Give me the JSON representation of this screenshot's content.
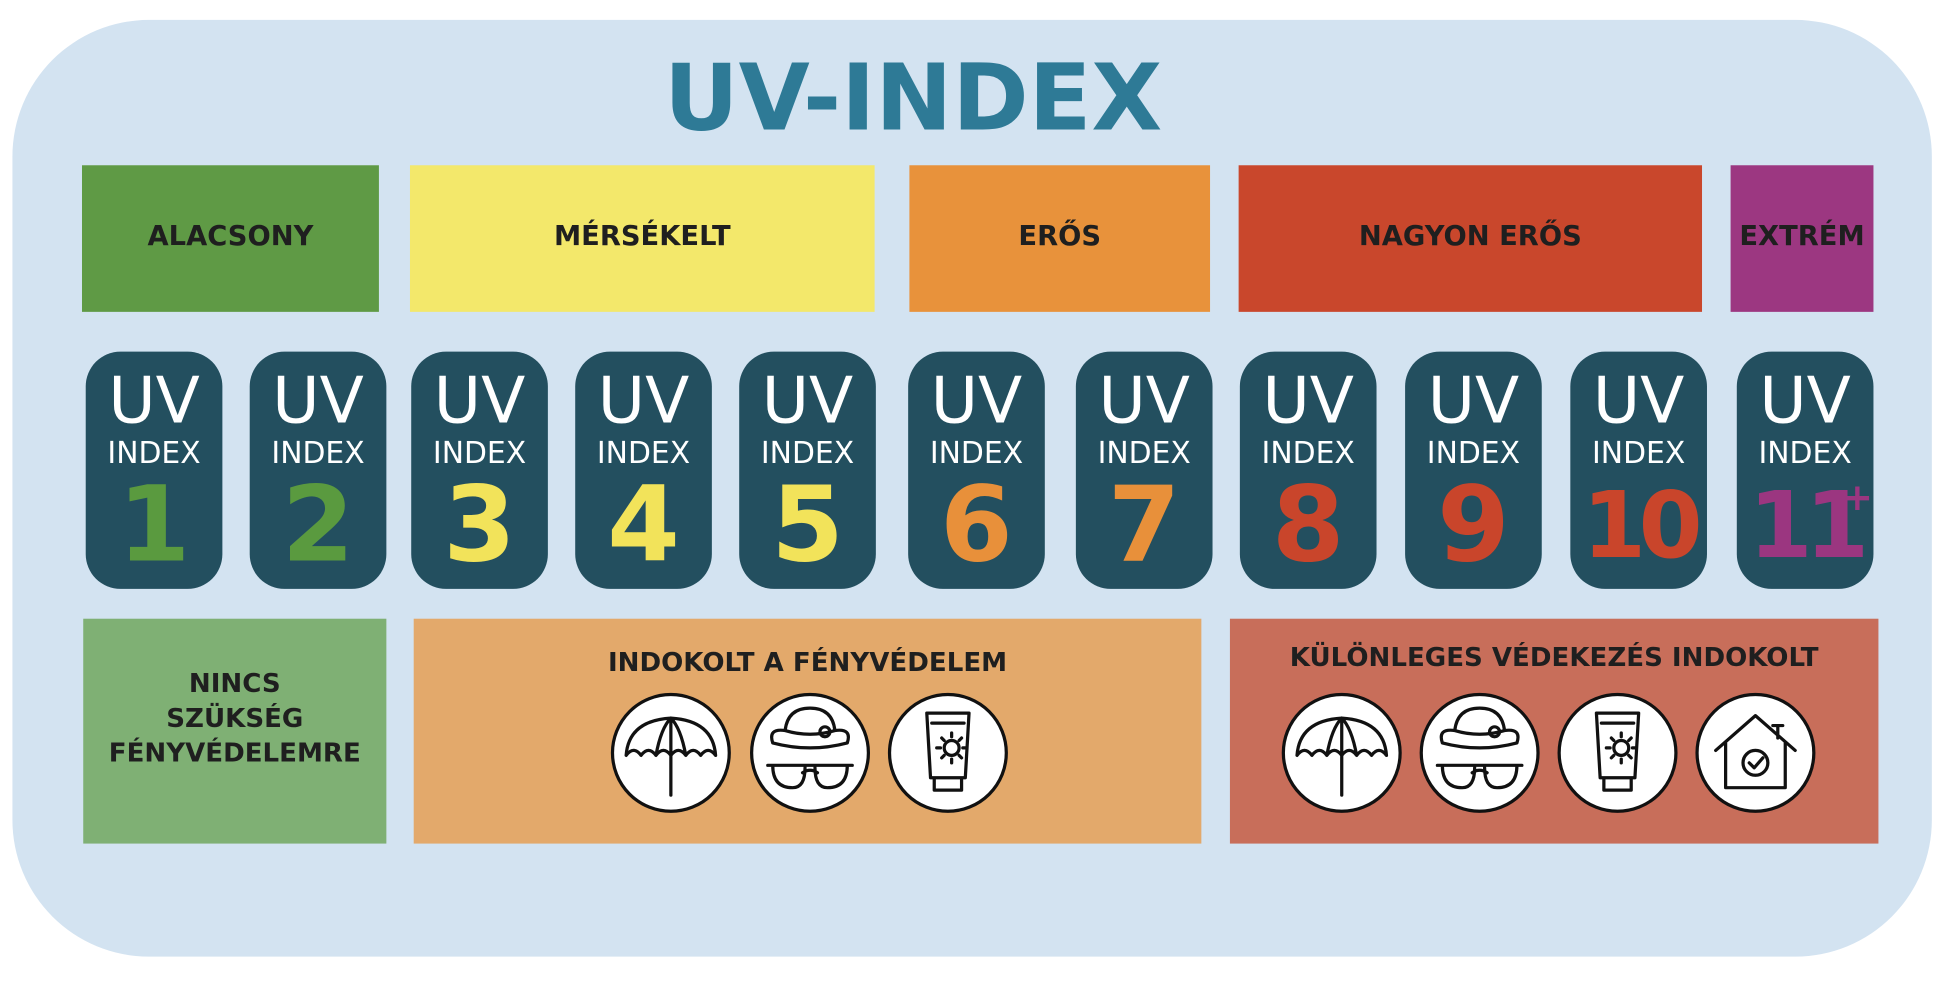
{
  "title": "UV-INDEX",
  "levels": [
    {
      "label": "ALACSONY",
      "color": "#5f9a45"
    },
    {
      "label": "MÉRSÉKELT",
      "color": "#f3e86b"
    },
    {
      "label": "ERŐS",
      "color": "#e8923b"
    },
    {
      "label": "NAGYON ERŐS",
      "color": "#c9472c"
    },
    {
      "label": "EXTRÉM",
      "color": "#9c3781"
    }
  ],
  "cards": [
    {
      "uv": "UV",
      "index": "INDEX",
      "number": "1",
      "color": "#5a9a3f"
    },
    {
      "uv": "UV",
      "index": "INDEX",
      "number": "2",
      "color": "#5a9a3f"
    },
    {
      "uv": "UV",
      "index": "INDEX",
      "number": "3",
      "color": "#f2e35a"
    },
    {
      "uv": "UV",
      "index": "INDEX",
      "number": "4",
      "color": "#f2e35a"
    },
    {
      "uv": "UV",
      "index": "INDEX",
      "number": "5",
      "color": "#f2e35a"
    },
    {
      "uv": "UV",
      "index": "INDEX",
      "number": "6",
      "color": "#e8903a"
    },
    {
      "uv": "UV",
      "index": "INDEX",
      "number": "7",
      "color": "#e8903a"
    },
    {
      "uv": "UV",
      "index": "INDEX",
      "number": "8",
      "color": "#c9452b"
    },
    {
      "uv": "UV",
      "index": "INDEX",
      "number": "9",
      "color": "#c9452b"
    },
    {
      "uv": "UV",
      "index": "INDEX",
      "number": "10",
      "color": "#c9452b"
    },
    {
      "uv": "UV",
      "index": "INDEX",
      "number": "11",
      "suffix": "+",
      "color": "#9b3680"
    }
  ],
  "protection": [
    {
      "lines": [
        "NINCS",
        "SZÜKSÉG",
        "FÉNYVÉDELEMRE"
      ]
    },
    {
      "lines": [
        "INDOKOLT A FÉNYVÉDELEM"
      ]
    },
    {
      "lines": [
        "KÜLÖNLEGES VÉDEKEZÉS INDOKOLT"
      ]
    }
  ]
}
